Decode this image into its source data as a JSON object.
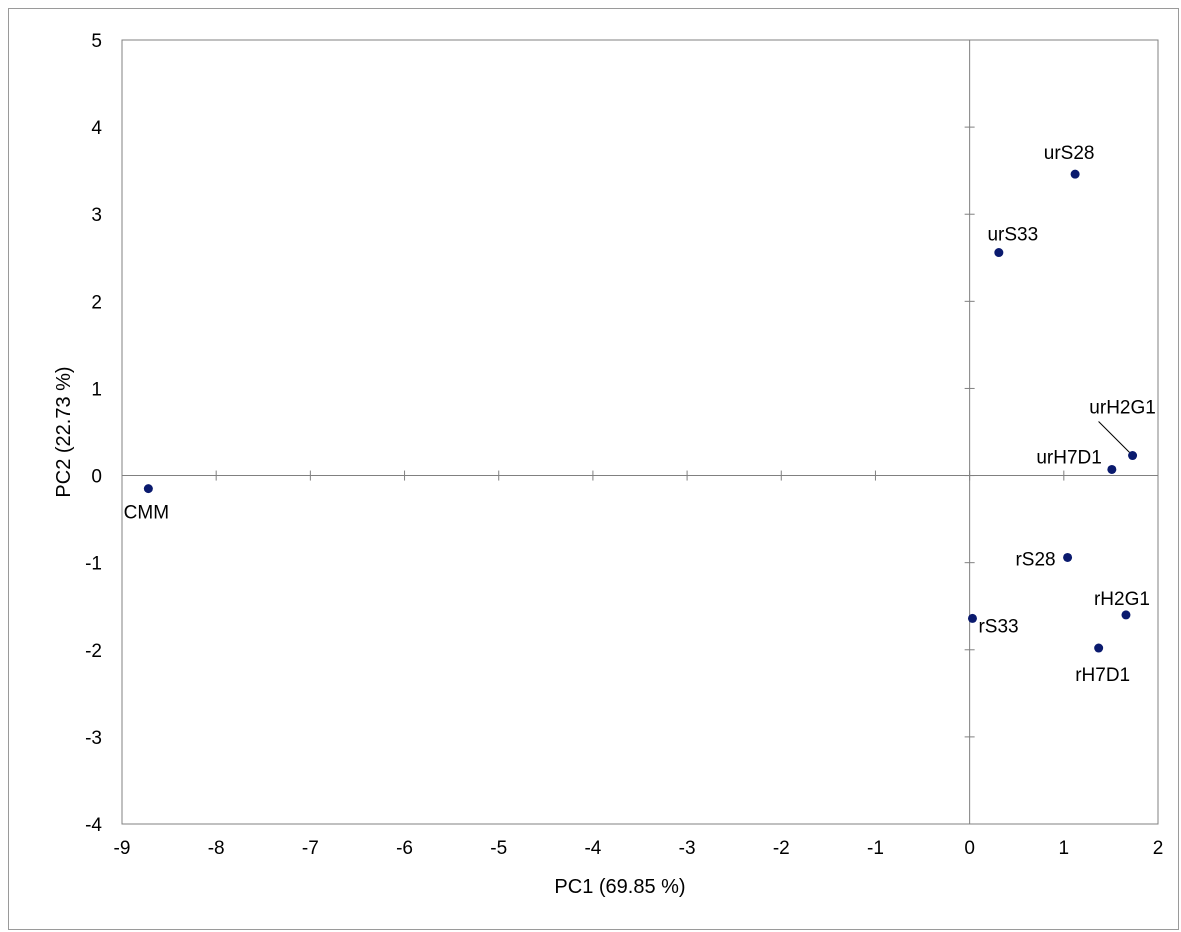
{
  "chart_data": {
    "type": "scatter",
    "title": "",
    "xlabel": "PC1 (69.85 %)",
    "ylabel": "PC2 (22.73 %)",
    "xlim": [
      -9,
      2
    ],
    "ylim": [
      -4,
      5
    ],
    "x_ticks": [
      -9,
      -8,
      -7,
      -6,
      -5,
      -4,
      -3,
      -2,
      -1,
      0,
      1,
      2
    ],
    "y_ticks": [
      -4,
      -3,
      -2,
      -1,
      0,
      1,
      2,
      3,
      4,
      5
    ],
    "grid": false,
    "legend": "none",
    "marker_color": "#0a1a6e",
    "points": [
      {
        "label": "CMM",
        "x": -8.72,
        "y": -0.15
      },
      {
        "label": "urS28",
        "x": 1.12,
        "y": 3.46
      },
      {
        "label": "urS33",
        "x": 0.31,
        "y": 2.56
      },
      {
        "label": "urH2G1",
        "x": 1.73,
        "y": 0.23
      },
      {
        "label": "urH7D1",
        "x": 1.51,
        "y": 0.07
      },
      {
        "label": "rS28",
        "x": 1.04,
        "y": -0.94
      },
      {
        "label": "rH2G1",
        "x": 1.66,
        "y": -1.6
      },
      {
        "label": "rS33",
        "x": 0.03,
        "y": -1.64
      },
      {
        "label": "rH7D1",
        "x": 1.37,
        "y": -1.98
      }
    ]
  }
}
